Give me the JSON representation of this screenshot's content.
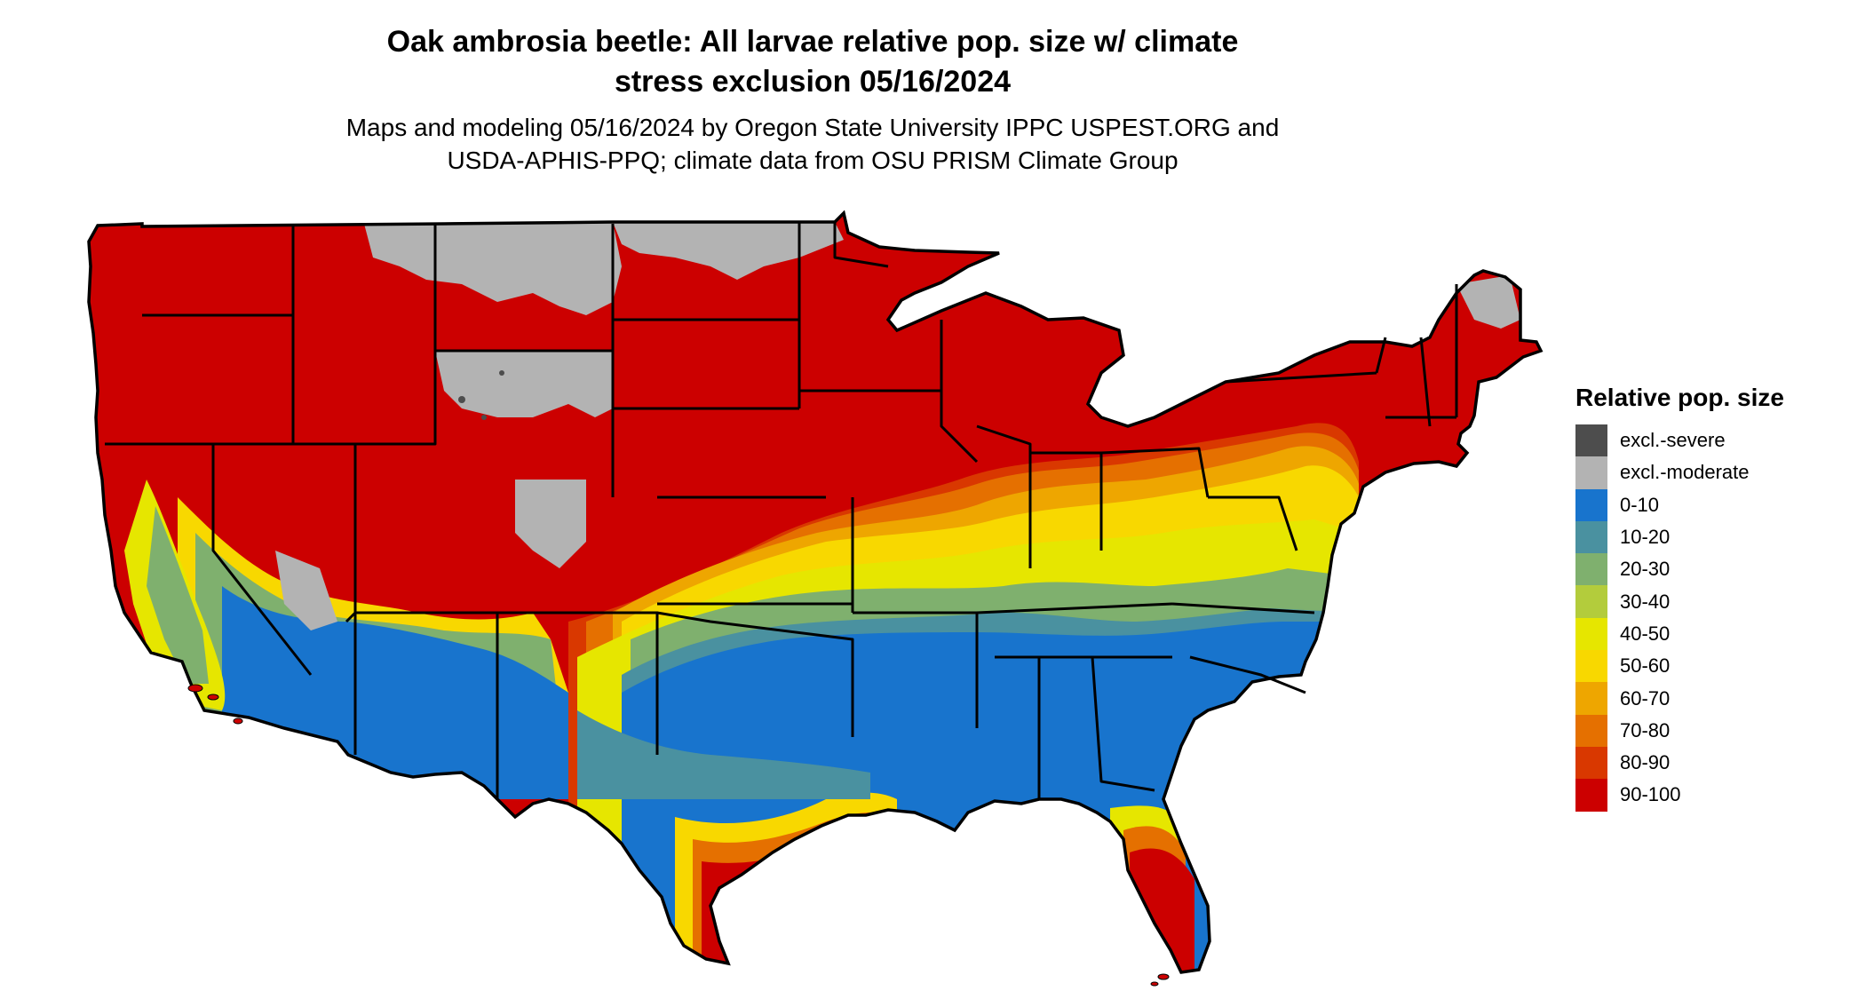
{
  "title": {
    "line1": "Oak ambrosia beetle: All larvae relative pop. size w/ climate",
    "line2": "stress exclusion 05/16/2024"
  },
  "subtitle": {
    "line1": "Maps and modeling 05/16/2024 by Oregon State University IPPC USPEST.ORG and",
    "line2": "USDA-APHIS-PPQ; climate data from OSU PRISM Climate Group"
  },
  "legend": {
    "title": "Relative pop. size",
    "items": [
      {
        "label": "excl.-severe",
        "color": "#4d4d4d"
      },
      {
        "label": "excl.-moderate",
        "color": "#b3b3b3"
      },
      {
        "label": "0-10",
        "color": "#1874cd"
      },
      {
        "label": "10-20",
        "color": "#4a91a0"
      },
      {
        "label": "20-30",
        "color": "#7fb06e"
      },
      {
        "label": "30-40",
        "color": "#b3cc3c"
      },
      {
        "label": "40-50",
        "color": "#e6e600"
      },
      {
        "label": "50-60",
        "color": "#f8d800"
      },
      {
        "label": "60-70",
        "color": "#eea600"
      },
      {
        "label": "70-80",
        "color": "#e57000"
      },
      {
        "label": "80-90",
        "color": "#d93800"
      },
      {
        "label": "90-100",
        "color": "#cc0000"
      }
    ]
  },
  "map": {
    "region": "Contiguous United States",
    "colors": {
      "severe": "#4d4d4d",
      "moderate": "#b3b3b3",
      "b0_10": "#1874cd",
      "b10_20": "#4a91a0",
      "b20_30": "#7fb06e",
      "b30_40": "#b3cc3c",
      "b40_50": "#e6e600",
      "b50_60": "#f8d800",
      "b60_70": "#eea600",
      "b70_80": "#e57000",
      "b80_90": "#d93800",
      "b90_100": "#cc0000",
      "border": "#000000"
    }
  }
}
